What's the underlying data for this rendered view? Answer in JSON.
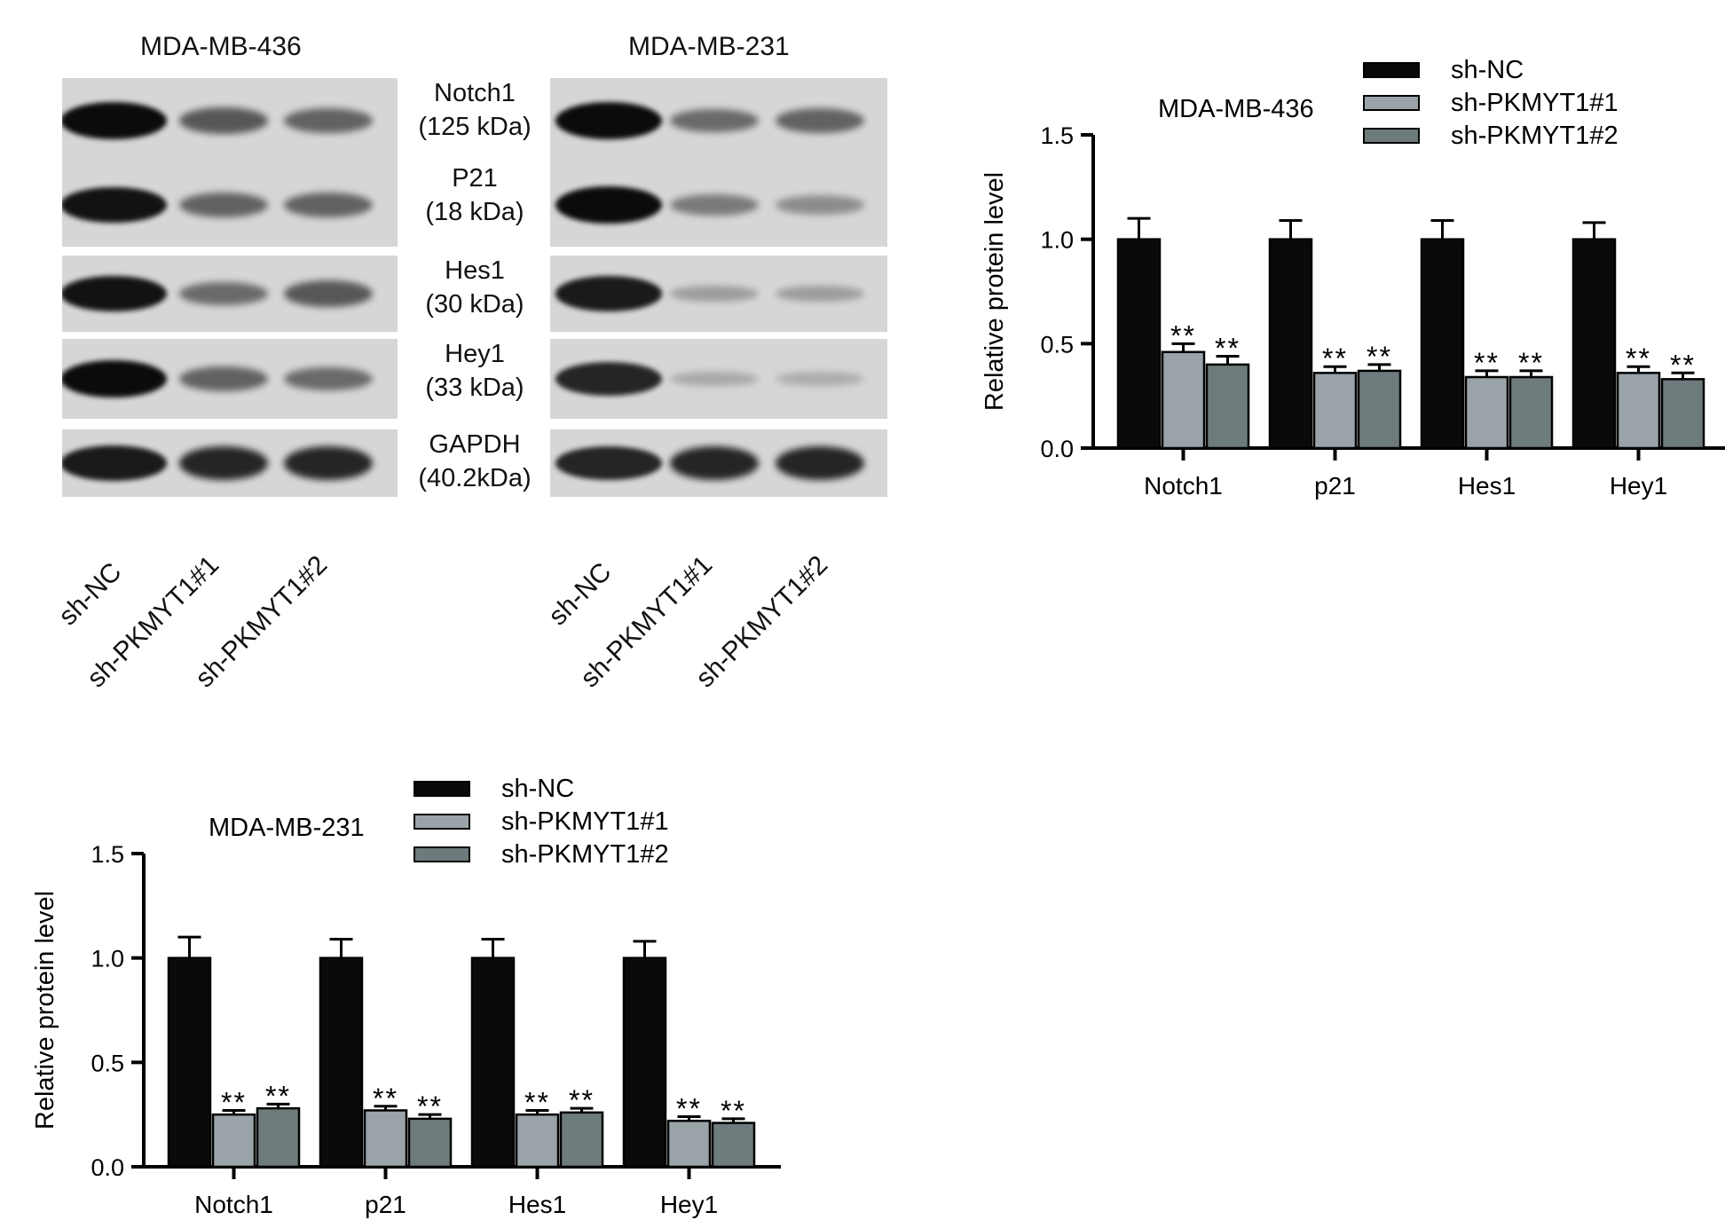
{
  "blots": [
    {
      "title": "MDA-MB-436",
      "lanes": [
        "sh-NC",
        "sh-PKMYT1#1",
        "sh-PKMYT1#2"
      ],
      "rows": [
        {
          "name": "Notch1",
          "band_intensity": [
            1.0,
            0.55,
            0.5
          ]
        },
        {
          "name": "P21",
          "band_intensity": [
            0.95,
            0.5,
            0.5
          ]
        },
        {
          "name": "Hes1",
          "band_intensity": [
            0.95,
            0.45,
            0.55
          ]
        },
        {
          "name": "Hey1",
          "band_intensity": [
            1.0,
            0.5,
            0.45
          ]
        },
        {
          "name": "GAPDH",
          "band_intensity": [
            0.9,
            0.85,
            0.85
          ]
        }
      ]
    },
    {
      "title": "MDA-MB-231",
      "lanes": [
        "sh-NC",
        "sh-PKMYT1#1",
        "sh-PKMYT1#2"
      ],
      "rows": [
        {
          "name": "Notch1",
          "band_intensity": [
            1.0,
            0.45,
            0.5
          ]
        },
        {
          "name": "P21",
          "band_intensity": [
            1.0,
            0.35,
            0.25
          ]
        },
        {
          "name": "Hes1",
          "band_intensity": [
            0.9,
            0.15,
            0.15
          ]
        },
        {
          "name": "Hey1",
          "band_intensity": [
            0.85,
            0.08,
            0.06
          ]
        },
        {
          "name": "GAPDH",
          "band_intensity": [
            0.85,
            0.85,
            0.85
          ]
        }
      ]
    }
  ],
  "protein_labels": [
    {
      "line1": "Notch1",
      "line2": "(125 kDa)"
    },
    {
      "line1": "P21",
      "line2": "(18 kDa)"
    },
    {
      "line1": "Hes1",
      "line2": "(30 kDa)"
    },
    {
      "line1": "Hey1",
      "line2": "(33 kDa)"
    },
    {
      "line1": "GAPDH",
      "line2": "(40.2kDa)"
    }
  ],
  "colors": {
    "sh_nc": "#0a0a0a",
    "sh1": "#9aa3a8",
    "sh2": "#6e7b7c",
    "band": "#0b0b0b",
    "membrane": "#d6d6d6"
  },
  "chart_data": [
    {
      "type": "bar",
      "title": "MDA-MB-436",
      "ylabel": "Relative protein level",
      "xlabel": "",
      "ylim": [
        0,
        1.5
      ],
      "yticks": [
        "0.0",
        "0.5",
        "1.0",
        "1.5"
      ],
      "categories": [
        "Notch1",
        "p21",
        "Hes1",
        "Hey1"
      ],
      "series": [
        {
          "name": "sh-NC",
          "values": [
            1.0,
            1.0,
            1.0,
            1.0
          ],
          "errors": [
            0.1,
            0.09,
            0.09,
            0.08
          ],
          "marks": [
            "",
            "",
            "",
            ""
          ]
        },
        {
          "name": "sh-PKMYT1#1",
          "values": [
            0.46,
            0.36,
            0.34,
            0.36
          ],
          "errors": [
            0.04,
            0.03,
            0.03,
            0.03
          ],
          "marks": [
            "**",
            "**",
            "**",
            "**"
          ]
        },
        {
          "name": "sh-PKMYT1#2",
          "values": [
            0.4,
            0.37,
            0.34,
            0.33
          ],
          "errors": [
            0.04,
            0.03,
            0.03,
            0.03
          ],
          "marks": [
            "**",
            "**",
            "**",
            "**"
          ]
        }
      ],
      "legend": "top-right"
    },
    {
      "type": "bar",
      "title": "MDA-MB-231",
      "ylabel": "Relative protein level",
      "xlabel": "",
      "ylim": [
        0,
        1.5
      ],
      "yticks": [
        "0.0",
        "0.5",
        "1.0",
        "1.5"
      ],
      "categories": [
        "Notch1",
        "p21",
        "Hes1",
        "Hey1"
      ],
      "series": [
        {
          "name": "sh-NC",
          "values": [
            1.0,
            1.0,
            1.0,
            1.0
          ],
          "errors": [
            0.1,
            0.09,
            0.09,
            0.08
          ],
          "marks": [
            "",
            "",
            "",
            ""
          ]
        },
        {
          "name": "sh-PKMYT1#1",
          "values": [
            0.25,
            0.27,
            0.25,
            0.22
          ],
          "errors": [
            0.02,
            0.02,
            0.02,
            0.02
          ],
          "marks": [
            "**",
            "**",
            "**",
            "**"
          ]
        },
        {
          "name": "sh-PKMYT1#2",
          "values": [
            0.28,
            0.23,
            0.26,
            0.21
          ],
          "errors": [
            0.02,
            0.02,
            0.02,
            0.02
          ],
          "marks": [
            "**",
            "**",
            "**",
            "**"
          ]
        }
      ],
      "legend": "top-right"
    }
  ]
}
